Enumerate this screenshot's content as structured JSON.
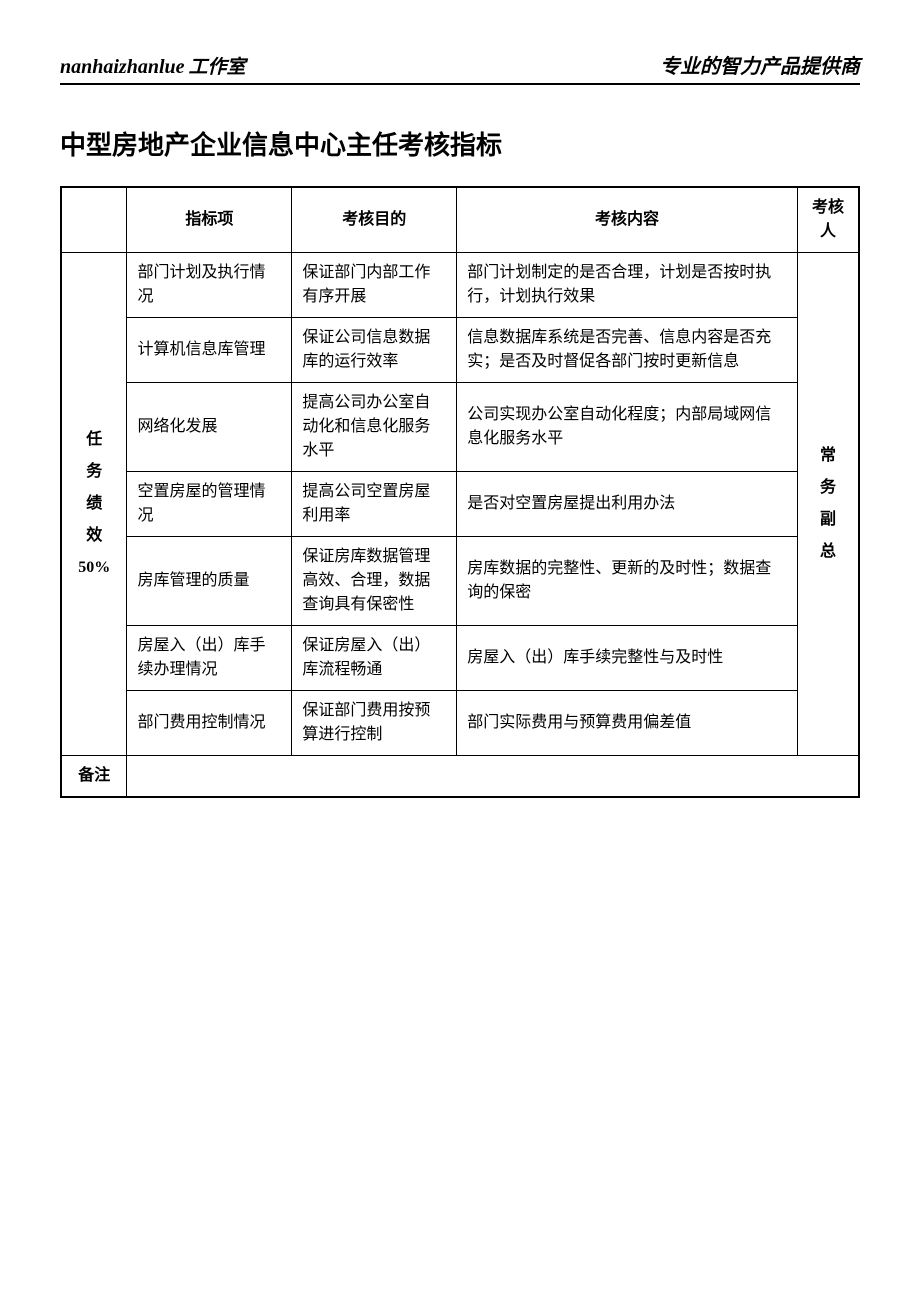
{
  "header": {
    "brand": "nanhaizhanlue",
    "studio": "工作室",
    "tagline": "专业的智力产品提供商"
  },
  "title": "中型房地产企业信息中心主任考核指标",
  "table": {
    "headers": {
      "indicator": "指标项",
      "purpose": "考核目的",
      "content": "考核内容",
      "assessor": "考核人"
    },
    "category": {
      "label_line1": "任",
      "label_line2": "务",
      "label_line3": "绩",
      "label_line4": "效",
      "label_line5": "50%"
    },
    "assessor": {
      "line1": "常",
      "line2": "务",
      "line3": "副",
      "line4": "总"
    },
    "rows": [
      {
        "indicator": "部门计划及执行情况",
        "purpose": "保证部门内部工作有序开展",
        "content": "部门计划制定的是否合理，计划是否按时执行，计划执行效果"
      },
      {
        "indicator": "计算机信息库管理",
        "purpose": "保证公司信息数据库的运行效率",
        "content": "信息数据库系统是否完善、信息内容是否充实；是否及时督促各部门按时更新信息"
      },
      {
        "indicator": "网络化发展",
        "purpose": "提高公司办公室自动化和信息化服务水平",
        "content": "公司实现办公室自动化程度；内部局域网信息化服务水平"
      },
      {
        "indicator": "空置房屋的管理情况",
        "purpose": "提高公司空置房屋利用率",
        "content": "是否对空置房屋提出利用办法"
      },
      {
        "indicator": "房库管理的质量",
        "purpose": "保证房库数据管理高效、合理，数据查询具有保密性",
        "content": "房库数据的完整性、更新的及时性；数据查询的保密"
      },
      {
        "indicator": "房屋入（出）库手续办理情况",
        "purpose": "保证房屋入（出）库流程畅通",
        "content": "房屋入（出）库手续完整性与及时性"
      },
      {
        "indicator": "部门费用控制情况",
        "purpose": "保证部门费用按预算进行控制",
        "content": "部门实际费用与预算费用偏差值"
      }
    ],
    "remark_label": "备注",
    "remark_content": ""
  },
  "colors": {
    "border": "#000000",
    "background": "#ffffff",
    "text": "#000000"
  }
}
